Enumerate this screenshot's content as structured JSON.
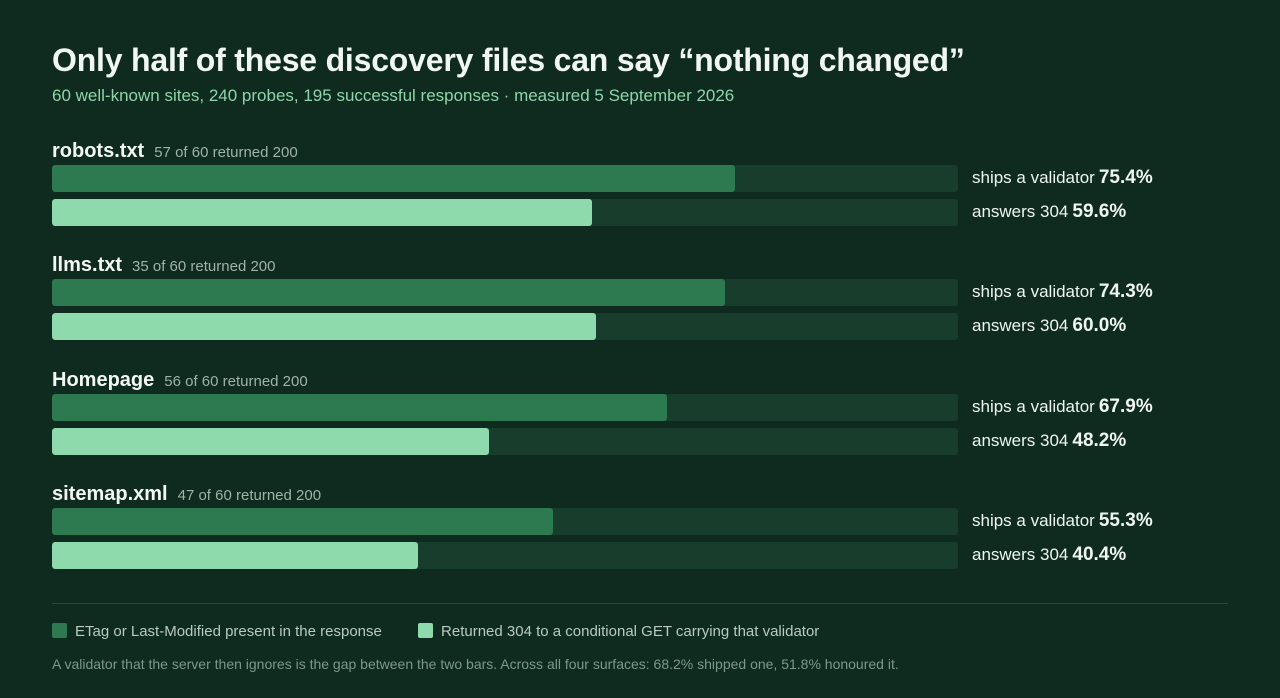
{
  "title": "Only half of these discovery files can say “nothing changed”",
  "subtitle": "60 well-known sites, 240 probes, 195 successful responses · measured 5 September 2026",
  "colors": {
    "background": "#0f2a1f",
    "validator": "#2e7a50",
    "answers_304": "#8fdaad",
    "track": "#183d2c"
  },
  "chart_data": {
    "type": "bar",
    "orientation": "horizontal",
    "xlim": [
      0,
      100
    ],
    "unit": "%",
    "categories": [
      "robots.txt",
      "llms.txt",
      "Homepage",
      "sitemap.xml"
    ],
    "notes": [
      "57 of 60 returned 200",
      "35 of 60 returned 200",
      "56 of 60 returned 200",
      "47 of 60 returned 200"
    ],
    "series": [
      {
        "name": "ETag or Last-Modified present in the response",
        "bar_label": "ships a validator",
        "values": [
          75.4,
          74.3,
          67.9,
          55.3
        ],
        "labels": [
          "75.4%",
          "74.3%",
          "67.9%",
          "55.3%"
        ]
      },
      {
        "name": "Returned 304 to a conditional GET carrying that validator",
        "bar_label": "answers 304",
        "values": [
          59.6,
          60.0,
          48.2,
          40.4
        ],
        "labels": [
          "59.6%",
          "60.0%",
          "48.2%",
          "40.4%"
        ]
      }
    ],
    "legend": "bottom-left"
  },
  "footnote": "A validator that the server then ignores is the gap between the two bars. Across all four surfaces: 68.2% shipped one, 51.8% honoured it."
}
